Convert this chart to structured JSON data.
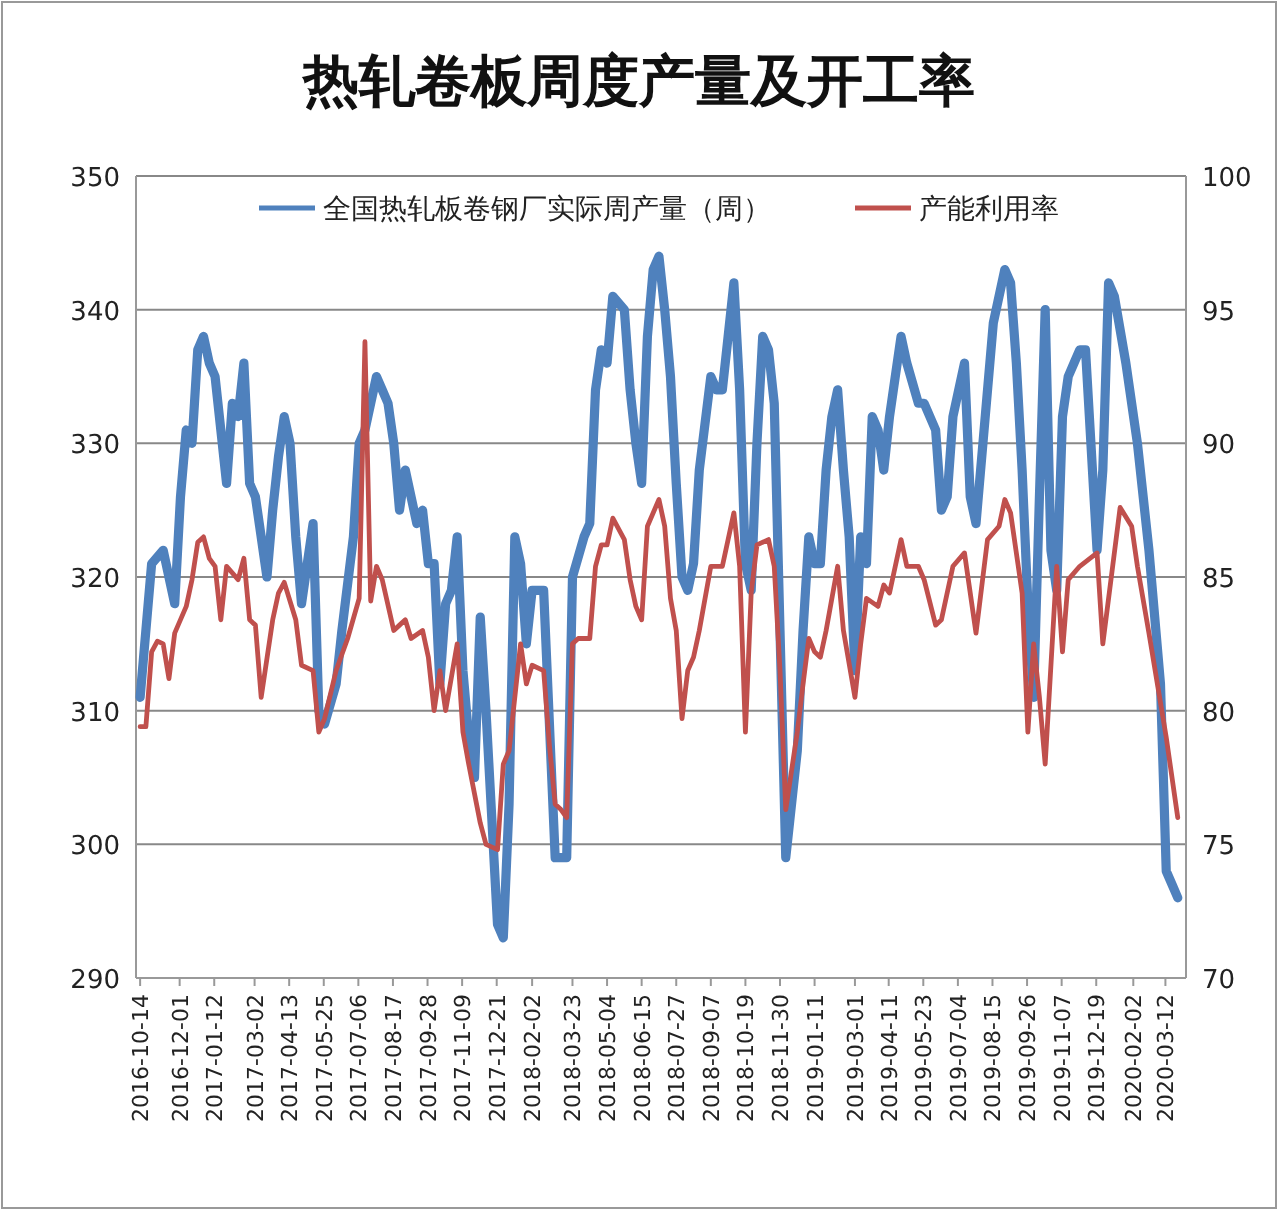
{
  "chart_data": {
    "type": "line",
    "title": "热轧卷板周度产量及开工率",
    "series": [
      {
        "name": "全国热轧板卷钢厂实际周产量（周）",
        "color": "#4f81bd",
        "axis": "y",
        "x": [
          "2016-10-14",
          "2016-10-28",
          "2016-11-11",
          "2016-11-25",
          "2016-12-02",
          "2016-12-09",
          "2016-12-16",
          "2016-12-23",
          "2016-12-30",
          "2017-01-06",
          "2017-01-13",
          "2017-01-27",
          "2017-02-03",
          "2017-02-10",
          "2017-02-17",
          "2017-02-24",
          "2017-03-03",
          "2017-03-17",
          "2017-03-24",
          "2017-03-31",
          "2017-04-07",
          "2017-04-14",
          "2017-04-21",
          "2017-04-28",
          "2017-05-12",
          "2017-05-19",
          "2017-05-26",
          "2017-06-09",
          "2017-06-16",
          "2017-06-30",
          "2017-07-07",
          "2017-07-14",
          "2017-07-28",
          "2017-08-04",
          "2017-08-11",
          "2017-08-18",
          "2017-08-25",
          "2017-09-01",
          "2017-09-15",
          "2017-09-22",
          "2017-09-29",
          "2017-10-06",
          "2017-10-13",
          "2017-10-20",
          "2017-10-27",
          "2017-11-03",
          "2017-11-10",
          "2017-11-17",
          "2017-11-24",
          "2017-12-01",
          "2017-12-08",
          "2017-12-15",
          "2017-12-22",
          "2017-12-29",
          "2018-01-05",
          "2018-01-12",
          "2018-01-19",
          "2018-01-26",
          "2018-02-02",
          "2018-02-16",
          "2018-02-23",
          "2018-03-02",
          "2018-03-09",
          "2018-03-16",
          "2018-03-23",
          "2018-04-06",
          "2018-04-13",
          "2018-04-20",
          "2018-04-27",
          "2018-05-04",
          "2018-05-11",
          "2018-05-25",
          "2018-06-01",
          "2018-06-08",
          "2018-06-15",
          "2018-06-22",
          "2018-06-29",
          "2018-07-06",
          "2018-07-13",
          "2018-07-20",
          "2018-07-27",
          "2018-08-03",
          "2018-08-10",
          "2018-08-17",
          "2018-08-24",
          "2018-09-07",
          "2018-09-14",
          "2018-09-21",
          "2018-09-28",
          "2018-10-05",
          "2018-10-12",
          "2018-10-19",
          "2018-10-26",
          "2018-11-02",
          "2018-11-09",
          "2018-11-16",
          "2018-11-23",
          "2018-11-30",
          "2018-12-07",
          "2018-12-21",
          "2018-12-28",
          "2019-01-04",
          "2019-01-11",
          "2019-01-18",
          "2019-01-25",
          "2019-02-01",
          "2019-02-08",
          "2019-02-15",
          "2019-02-22",
          "2019-03-01",
          "2019-03-08",
          "2019-03-15",
          "2019-03-22",
          "2019-03-29",
          "2019-04-05",
          "2019-04-12",
          "2019-04-26",
          "2019-05-03",
          "2019-05-17",
          "2019-05-24",
          "2019-06-07",
          "2019-06-14",
          "2019-06-21",
          "2019-06-28",
          "2019-07-12",
          "2019-07-19",
          "2019-07-26",
          "2019-08-16",
          "2019-08-30",
          "2019-09-06",
          "2019-09-13",
          "2019-09-20",
          "2019-09-27",
          "2019-10-04",
          "2019-10-11",
          "2019-10-18",
          "2019-10-25",
          "2019-11-01",
          "2019-11-08",
          "2019-11-15",
          "2019-11-22",
          "2019-11-29",
          "2019-12-06",
          "2019-12-20",
          "2019-12-27",
          "2020-01-03",
          "2020-01-10",
          "2020-01-24",
          "2020-02-07",
          "2020-02-21",
          "2020-03-06",
          "2020-03-13",
          "2020-03-20",
          "2020-03-27"
        ],
        "values": [
          311,
          321,
          322,
          318,
          326,
          331,
          330,
          337,
          338,
          336,
          335,
          327,
          333,
          332,
          336,
          327,
          326,
          320,
          325,
          329,
          332,
          330,
          323,
          318,
          324,
          310,
          309,
          312,
          316,
          323,
          330,
          331,
          335,
          334,
          333,
          330,
          325,
          328,
          324,
          325,
          321,
          321,
          312,
          318,
          319,
          323,
          313,
          308,
          305,
          317,
          310,
          302,
          294,
          293,
          303,
          323,
          321,
          315,
          319,
          319,
          309,
          299,
          299,
          299,
          320,
          323,
          324,
          334,
          337,
          336,
          341,
          340,
          334,
          330,
          327,
          338,
          343,
          344,
          340,
          335,
          327,
          320,
          319,
          321,
          328,
          335,
          334,
          334,
          338,
          342,
          334,
          321,
          319,
          330,
          338,
          337,
          333,
          316,
          299,
          307,
          316,
          323,
          321,
          321,
          328,
          332,
          334,
          328,
          323,
          313,
          323,
          321,
          332,
          331,
          328,
          332,
          338,
          336,
          333,
          333,
          331,
          325,
          326,
          332,
          336,
          326,
          324,
          339,
          343,
          342,
          336,
          328,
          318,
          311,
          326,
          340,
          322,
          319,
          332,
          335,
          336,
          337,
          337,
          322,
          328,
          342,
          341,
          336,
          330,
          322,
          312,
          298,
          297,
          296
        ]
      },
      {
        "name": "产能利用率",
        "color": "#c0504d",
        "axis": "y2",
        "x": [
          "2016-10-14",
          "2016-10-21",
          "2016-10-28",
          "2016-11-04",
          "2016-11-11",
          "2016-11-18",
          "2016-11-25",
          "2016-12-09",
          "2016-12-16",
          "2016-12-23",
          "2016-12-30",
          "2017-01-06",
          "2017-01-13",
          "2017-01-20",
          "2017-01-27",
          "2017-02-10",
          "2017-02-17",
          "2017-02-24",
          "2017-03-03",
          "2017-03-10",
          "2017-03-24",
          "2017-03-31",
          "2017-04-07",
          "2017-04-21",
          "2017-04-28",
          "2017-05-12",
          "2017-05-19",
          "2017-05-26",
          "2017-06-09",
          "2017-06-23",
          "2017-07-07",
          "2017-07-14",
          "2017-07-21",
          "2017-07-28",
          "2017-08-04",
          "2017-08-18",
          "2017-08-25",
          "2017-09-01",
          "2017-09-08",
          "2017-09-22",
          "2017-09-29",
          "2017-10-06",
          "2017-10-13",
          "2017-10-20",
          "2017-11-03",
          "2017-11-10",
          "2017-11-17",
          "2017-12-01",
          "2017-12-08",
          "2017-12-22",
          "2017-12-29",
          "2018-01-05",
          "2018-01-19",
          "2018-01-26",
          "2018-02-02",
          "2018-02-16",
          "2018-02-23",
          "2018-03-02",
          "2018-03-09",
          "2018-03-16",
          "2018-03-23",
          "2018-03-30",
          "2018-04-13",
          "2018-04-20",
          "2018-04-27",
          "2018-05-04",
          "2018-05-11",
          "2018-05-25",
          "2018-06-01",
          "2018-06-08",
          "2018-06-15",
          "2018-06-22",
          "2018-07-06",
          "2018-07-13",
          "2018-07-20",
          "2018-07-27",
          "2018-08-03",
          "2018-08-10",
          "2018-08-17",
          "2018-08-24",
          "2018-09-07",
          "2018-09-14",
          "2018-09-21",
          "2018-09-28",
          "2018-10-05",
          "2018-10-12",
          "2018-10-19",
          "2018-10-26",
          "2018-11-02",
          "2018-11-16",
          "2018-11-23",
          "2018-11-30",
          "2018-12-07",
          "2018-12-21",
          "2018-12-28",
          "2019-01-04",
          "2019-01-11",
          "2019-01-18",
          "2019-01-25",
          "2019-02-08",
          "2019-02-15",
          "2019-03-01",
          "2019-03-08",
          "2019-03-15",
          "2019-03-29",
          "2019-04-05",
          "2019-04-12",
          "2019-04-26",
          "2019-05-03",
          "2019-05-17",
          "2019-05-24",
          "2019-06-07",
          "2019-06-14",
          "2019-06-28",
          "2019-07-12",
          "2019-07-26",
          "2019-08-09",
          "2019-08-23",
          "2019-08-30",
          "2019-09-06",
          "2019-09-20",
          "2019-09-27",
          "2019-10-04",
          "2019-10-11",
          "2019-10-18",
          "2019-11-01",
          "2019-11-08",
          "2019-11-15",
          "2019-11-29",
          "2019-12-20",
          "2019-12-27",
          "2020-01-17",
          "2020-01-31",
          "2020-02-07",
          "2020-02-21",
          "2020-03-13",
          "2020-03-27"
        ],
        "values": [
          79.4,
          79.4,
          82.2,
          82.6,
          82.5,
          81.2,
          82.9,
          83.9,
          84.9,
          86.3,
          86.5,
          85.7,
          85.4,
          83.4,
          85.4,
          84.9,
          85.7,
          83.4,
          83.2,
          80.5,
          83.4,
          84.4,
          84.8,
          83.4,
          81.7,
          81.5,
          79.2,
          79.7,
          81.5,
          82.7,
          84.2,
          93.8,
          84.1,
          85.4,
          84.9,
          83,
          83.2,
          83.4,
          82.7,
          83,
          82,
          80,
          81.5,
          80,
          82.5,
          79.2,
          78,
          75.8,
          75,
          74.8,
          78,
          78.5,
          82.5,
          81,
          81.7,
          81.5,
          78.7,
          76.5,
          76.3,
          76,
          82.5,
          82.7,
          82.7,
          85.4,
          86.2,
          86.2,
          87.2,
          86.4,
          84.9,
          83.9,
          83.4,
          86.9,
          87.9,
          86.9,
          84.2,
          83,
          79.7,
          81.5,
          82,
          83,
          85.4,
          85.4,
          85.4,
          86.4,
          87.4,
          85.4,
          79.2,
          84.4,
          86.2,
          86.4,
          85.4,
          81.5,
          76.3,
          79.2,
          81,
          82.7,
          82.2,
          82,
          83,
          85.4,
          83,
          80.5,
          82.5,
          84.2,
          83.9,
          84.7,
          84.4,
          86.4,
          85.4,
          85.4,
          84.9,
          83.2,
          83.4,
          85.4,
          85.9,
          82.9,
          86.4,
          86.9,
          87.9,
          87.4,
          84.4,
          79.2,
          82.5,
          80.5,
          78,
          85.4,
          82.2,
          84.9,
          85.4,
          85.9,
          82.5,
          87.6,
          86.9,
          85.4,
          82.9,
          79,
          76
        ]
      }
    ],
    "xlim": [
      "2016-10-09",
      "2020-04-06"
    ],
    "xticks": [
      "2016-10-14",
      "2016-12-01",
      "2017-01-12",
      "2017-03-02",
      "2017-04-13",
      "2017-05-25",
      "2017-07-06",
      "2017-08-17",
      "2017-09-28",
      "2017-11-09",
      "2017-12-21",
      "2018-02-02",
      "2018-03-23",
      "2018-05-04",
      "2018-06-15",
      "2018-07-27",
      "2018-09-07",
      "2018-10-19",
      "2018-11-30",
      "2019-01-11",
      "2019-03-01",
      "2019-04-11",
      "2019-05-23",
      "2019-07-04",
      "2019-08-15",
      "2019-09-26",
      "2019-11-07",
      "2019-12-19",
      "2020-02-02",
      "2020-03-12"
    ],
    "ylim": [
      290,
      350
    ],
    "yticks": [
      290,
      300,
      310,
      320,
      330,
      340,
      350
    ],
    "y2lim": [
      70,
      100
    ],
    "y2ticks": [
      70,
      75,
      80,
      85,
      90,
      95,
      100
    ],
    "grid": "y",
    "legend": "top"
  }
}
